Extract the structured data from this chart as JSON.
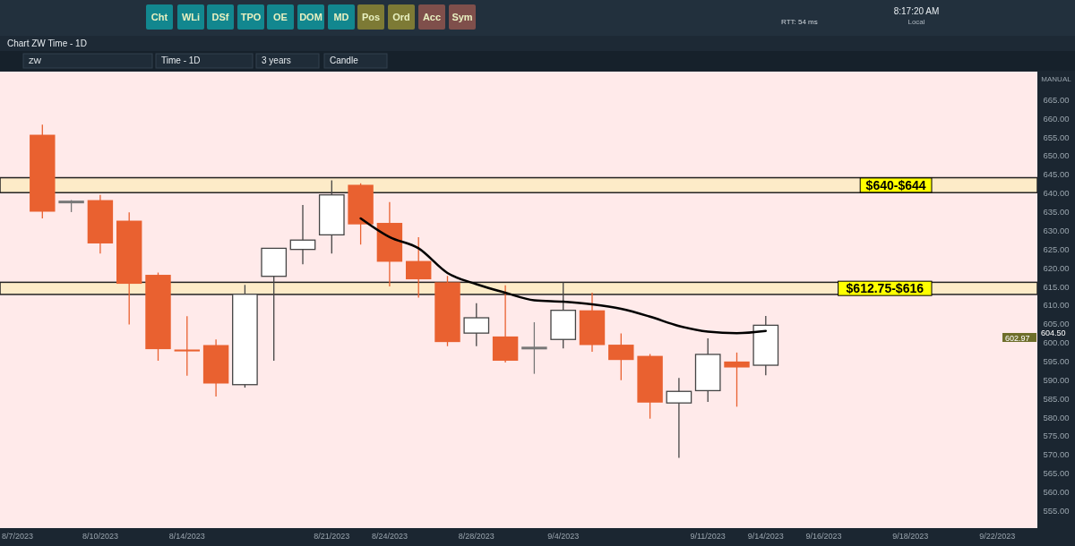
{
  "chart_data": {
    "type": "candlestick",
    "title": "Chart ZW Time - 1D",
    "categories": [
      "8/7/2023",
      null,
      null,
      "8/10/2023",
      null,
      null,
      "8/14/2023",
      null,
      null,
      null,
      null,
      "8/21/2023",
      null,
      "8/24/2023",
      null,
      null,
      "8/28/2023",
      null,
      null,
      "9/4/2023",
      null,
      null,
      null,
      null,
      "9/11/2023",
      null,
      "9/14/2023",
      null,
      "9/16/2023",
      null,
      null,
      "9/18/2023",
      null,
      null,
      "9/22/2023",
      null
    ],
    "series": [
      {
        "color": "#e96130",
        "ohlc": [
          null,
          [
            655.5,
            658.2,
            633.1,
            634.9
          ],
          null,
          [
            638,
            639.4,
            623.7,
            626.4
          ],
          [
            632.5,
            634.7,
            604.7,
            615.6
          ],
          [
            618,
            618.6,
            595,
            598.1
          ],
          [
            598,
            606.9,
            591,
            597.5
          ],
          [
            599.2,
            600.7,
            585.4,
            588.9
          ],
          null,
          null,
          null,
          null,
          [
            642.1,
            642.5,
            626.1,
            631.5
          ],
          [
            631.9,
            637.5,
            614.9,
            621.5
          ],
          [
            621.7,
            628.1,
            611.9,
            616.8
          ],
          [
            616,
            617.7,
            598.9,
            600
          ],
          null,
          [
            601.5,
            615.2,
            594.5,
            595
          ],
          null,
          null,
          [
            608.5,
            613.2,
            597.4,
            599.2
          ],
          [
            599.3,
            602.3,
            589.8,
            595.2
          ],
          [
            596.3,
            596.8,
            579.5,
            583.8
          ],
          null,
          null,
          [
            594.8,
            597.2,
            582.7,
            593.2
          ],
          null,
          null,
          null,
          null,
          null,
          null,
          null,
          null,
          null,
          null
        ]
      },
      {
        "color": "#444444",
        "ohlc": [
          null,
          null,
          null,
          null,
          null,
          null,
          null,
          null,
          [
            588.6,
            615.3,
            587.8,
            612.8
          ],
          [
            617.6,
            625.1,
            595,
            625.1
          ],
          [
            624.8,
            636.7,
            620.8,
            627.3
          ],
          [
            628.7,
            643.3,
            623.7,
            639.4
          ],
          null,
          null,
          null,
          null,
          [
            602.4,
            610.4,
            598.9,
            606.5
          ],
          null,
          null,
          [
            600.7,
            616,
            598.3,
            608.5
          ],
          null,
          null,
          null,
          [
            583.7,
            590.4,
            569,
            586.8
          ],
          [
            587,
            601,
            584,
            596.7
          ],
          null,
          [
            593.8,
            607,
            591.1,
            604.5
          ],
          null,
          null,
          null,
          null,
          null,
          null,
          null,
          null,
          null
        ]
      },
      {
        "color": "#777777",
        "ohlc": [
          null,
          null,
          [
            637.5,
            638,
            634.8,
            637.5
          ],
          null,
          null,
          null,
          null,
          null,
          null,
          null,
          null,
          null,
          null,
          null,
          null,
          null,
          null,
          null,
          [
            598.4,
            605.3,
            591.5,
            598.4
          ],
          null,
          null,
          null,
          null,
          null,
          null,
          null,
          null,
          null,
          null,
          null,
          null,
          null,
          null,
          null,
          null,
          null
        ]
      },
      {
        "type": "line",
        "color": "#000000",
        "values": [
          null,
          null,
          null,
          null,
          null,
          null,
          null,
          null,
          null,
          null,
          null,
          null,
          633.1,
          628.1,
          625.1,
          618.5,
          615.5,
          613.2,
          611.2,
          610.8,
          610.1,
          608.9,
          606.8,
          604.3,
          602.8,
          602.4,
          603.0,
          null,
          null,
          null,
          null,
          null,
          null,
          null,
          null,
          null
        ]
      }
    ],
    "ylim": [
      550.2,
      672.4
    ],
    "yticks": [
      {
        "value": 555,
        "label": "555.00"
      },
      {
        "value": 560,
        "label": "560.00"
      },
      {
        "value": 565,
        "label": "565.00"
      },
      {
        "value": 570,
        "label": "570.00"
      },
      {
        "value": 575,
        "label": "575.00"
      },
      {
        "value": 580,
        "label": "580.00"
      },
      {
        "value": 585,
        "label": "585.00"
      },
      {
        "value": 590,
        "label": "590.00"
      },
      {
        "value": 595,
        "label": "595.00"
      },
      {
        "value": 600,
        "label": "600.00"
      },
      {
        "value": 605,
        "label": "605.00"
      },
      {
        "value": 610,
        "label": "610.00"
      },
      {
        "value": 615,
        "label": "615.00"
      },
      {
        "value": 620,
        "label": "620.00"
      },
      {
        "value": 625,
        "label": "625.00"
      },
      {
        "value": 630,
        "label": "630.00"
      },
      {
        "value": 635,
        "label": "635.00"
      },
      {
        "value": 640,
        "label": "640.00"
      },
      {
        "value": 645,
        "label": "645.00"
      },
      {
        "value": 650,
        "label": "650.00"
      },
      {
        "value": 655,
        "label": "655.00"
      },
      {
        "value": 660,
        "label": "660.00"
      },
      {
        "value": 665,
        "label": "665.00"
      }
    ],
    "bands": [
      {
        "axis": "y",
        "from": 640,
        "to": 644,
        "label": "$640-$644",
        "color": "#fdebc8"
      },
      {
        "axis": "y",
        "from": 612.75,
        "to": 616,
        "label": "$612.75-$616",
        "color": "#fdebc8"
      }
    ],
    "annotations": [
      "Cht",
      "WLi",
      "DSf",
      "TPO",
      "OE",
      "DOM",
      "MD",
      "Pos",
      "Ord",
      "Acc",
      "Sym",
      "RTT: 54 ms",
      "8:17:20 AM",
      "Local",
      "ZW",
      "Time - 1D",
      "3 years",
      "Candle",
      "MANUAL",
      "604.50",
      "602.97"
    ]
  }
}
